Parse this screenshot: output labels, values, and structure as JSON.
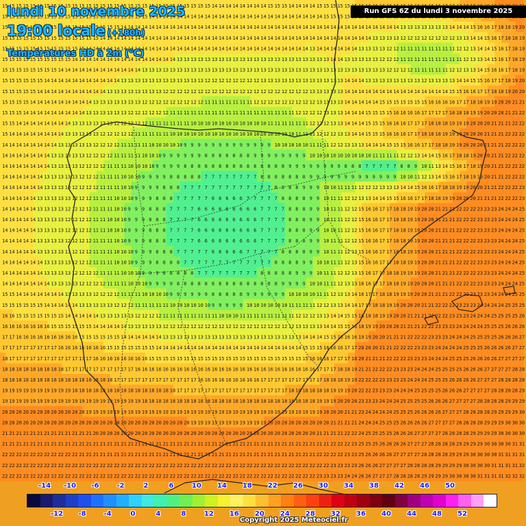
{
  "header": {
    "date_line": "lundi 10 novembre 2025",
    "time_line": "19:00 locale",
    "lead_time": "(+180h)",
    "product": "Températures HD à 2m (°C)"
  },
  "run_info": "Run GFS 6Z du lundi 3 novembre 2025",
  "copyright": "Copyright 2025 Meteociel.fr",
  "map": {
    "region": "Iberian Peninsula",
    "variable": "2m temperature",
    "unit": "°C"
  },
  "legend": {
    "top_labels": [
      "-14",
      "-10",
      "-6",
      "-2",
      "2",
      "6",
      "10",
      "14",
      "18",
      "22",
      "26",
      "30",
      "34",
      "38",
      "42",
      "46",
      "50"
    ],
    "bottom_labels": [
      "-12",
      "-8",
      "-4",
      "0",
      "4",
      "8",
      "12",
      "16",
      "20",
      "24",
      "28",
      "32",
      "36",
      "40",
      "44",
      "48",
      "52"
    ],
    "colors": [
      "#0a0a3c",
      "#1a1a6e",
      "#1c2e9a",
      "#1e3ec8",
      "#1e50f0",
      "#2070ff",
      "#2090ff",
      "#20b0ff",
      "#30d0ff",
      "#40e8e0",
      "#40f0b0",
      "#50f080",
      "#70f050",
      "#a0f030",
      "#d0f020",
      "#f8f030",
      "#fff060",
      "#ffe040",
      "#ffc030",
      "#ffa020",
      "#ff8010",
      "#ff6010",
      "#ff4010",
      "#f02010",
      "#e00010",
      "#c00010",
      "#a00010",
      "#800010",
      "#600010",
      "#800040",
      "#a00080",
      "#c000b0",
      "#e000d0",
      "#ff20f0",
      "#ff60f0",
      "#ffa0f8",
      "#ffffff"
    ]
  }
}
